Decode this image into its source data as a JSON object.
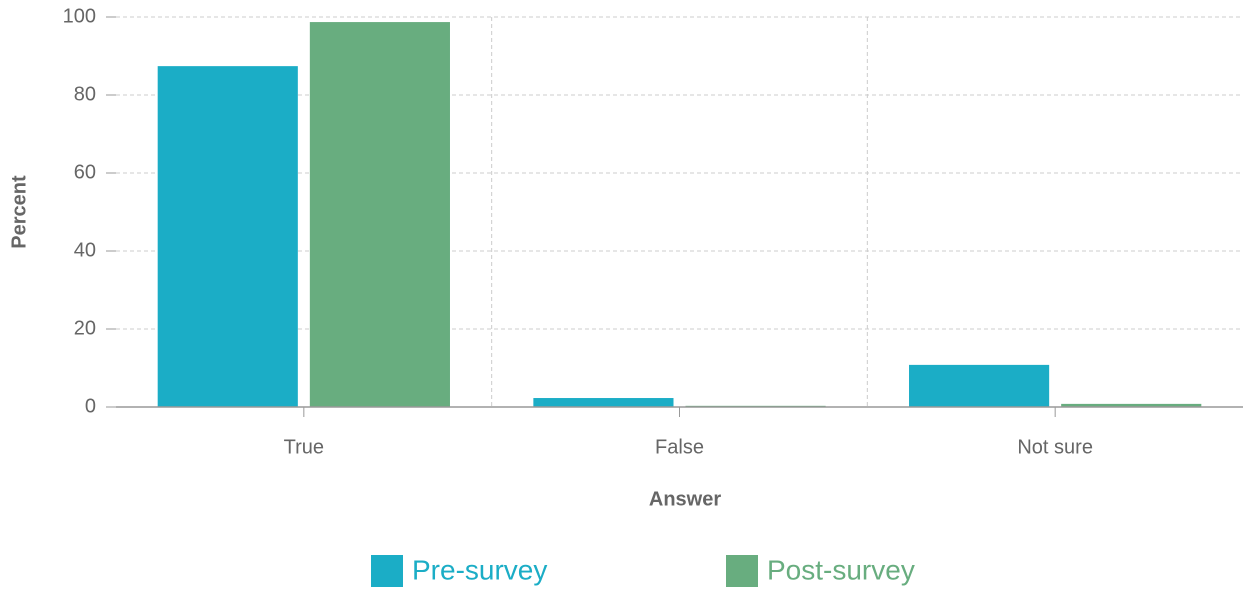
{
  "chart_data": {
    "type": "bar",
    "categories": [
      "True",
      "False",
      "Not sure"
    ],
    "series": [
      {
        "name": "Pre-survey",
        "color": "#1badc6",
        "values": [
          87.4,
          2.3,
          10.8
        ]
      },
      {
        "name": "Post-survey",
        "color": "#68ad7f",
        "values": [
          98.7,
          0.3,
          0.8
        ]
      }
    ],
    "xlabel": "Answer",
    "ylabel": "Percent",
    "ylim": [
      0,
      100
    ],
    "yticks": [
      0,
      20,
      40,
      60,
      80,
      100
    ],
    "grid": true,
    "legend": "bottom"
  }
}
